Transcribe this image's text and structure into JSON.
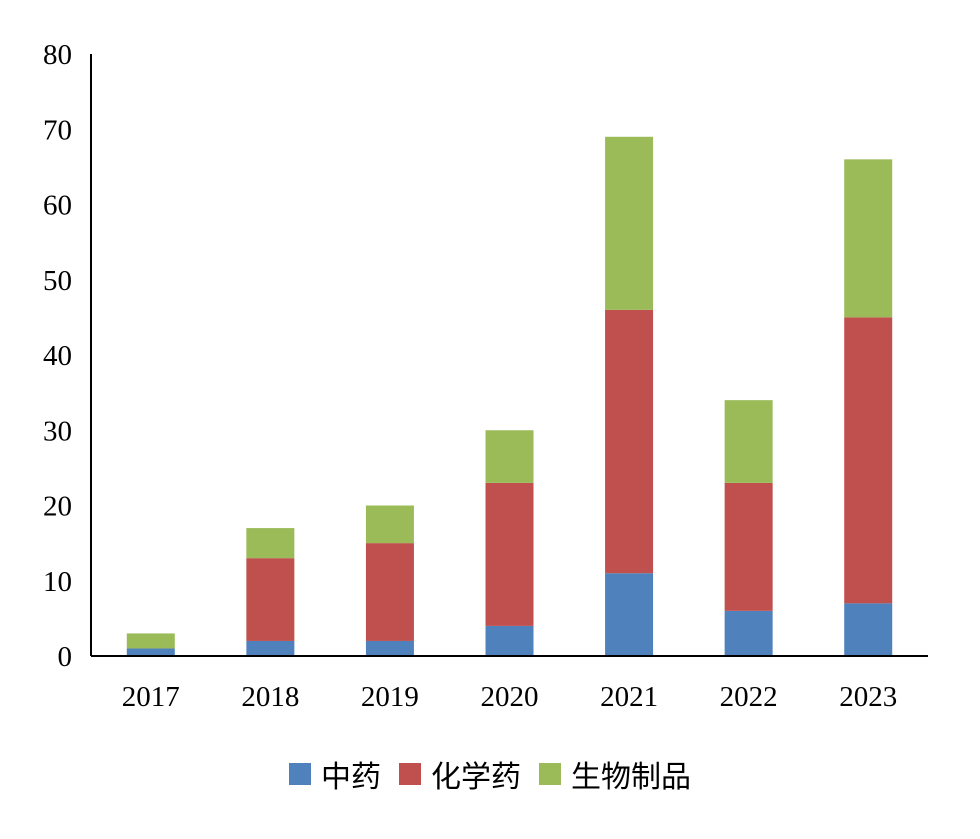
{
  "chart_data": {
    "type": "bar",
    "stacked": true,
    "categories": [
      "2017",
      "2018",
      "2019",
      "2020",
      "2021",
      "2022",
      "2023"
    ],
    "series": [
      {
        "name": "中药",
        "color": "#4f81bd",
        "values": [
          1,
          2,
          2,
          4,
          11,
          6,
          7
        ]
      },
      {
        "name": "化学药",
        "color": "#c0504d",
        "values": [
          0,
          11,
          13,
          19,
          35,
          17,
          38
        ]
      },
      {
        "name": "生物制品",
        "color": "#9bbb59",
        "values": [
          2,
          4,
          5,
          7,
          23,
          11,
          21
        ]
      }
    ],
    "ylim": [
      0,
      80
    ],
    "yticks": [
      "0",
      "10",
      "20",
      "30",
      "40",
      "50",
      "60",
      "70",
      "80"
    ],
    "grid": false,
    "legend_position": "bottom",
    "title": "",
    "xlabel": "",
    "ylabel": ""
  }
}
